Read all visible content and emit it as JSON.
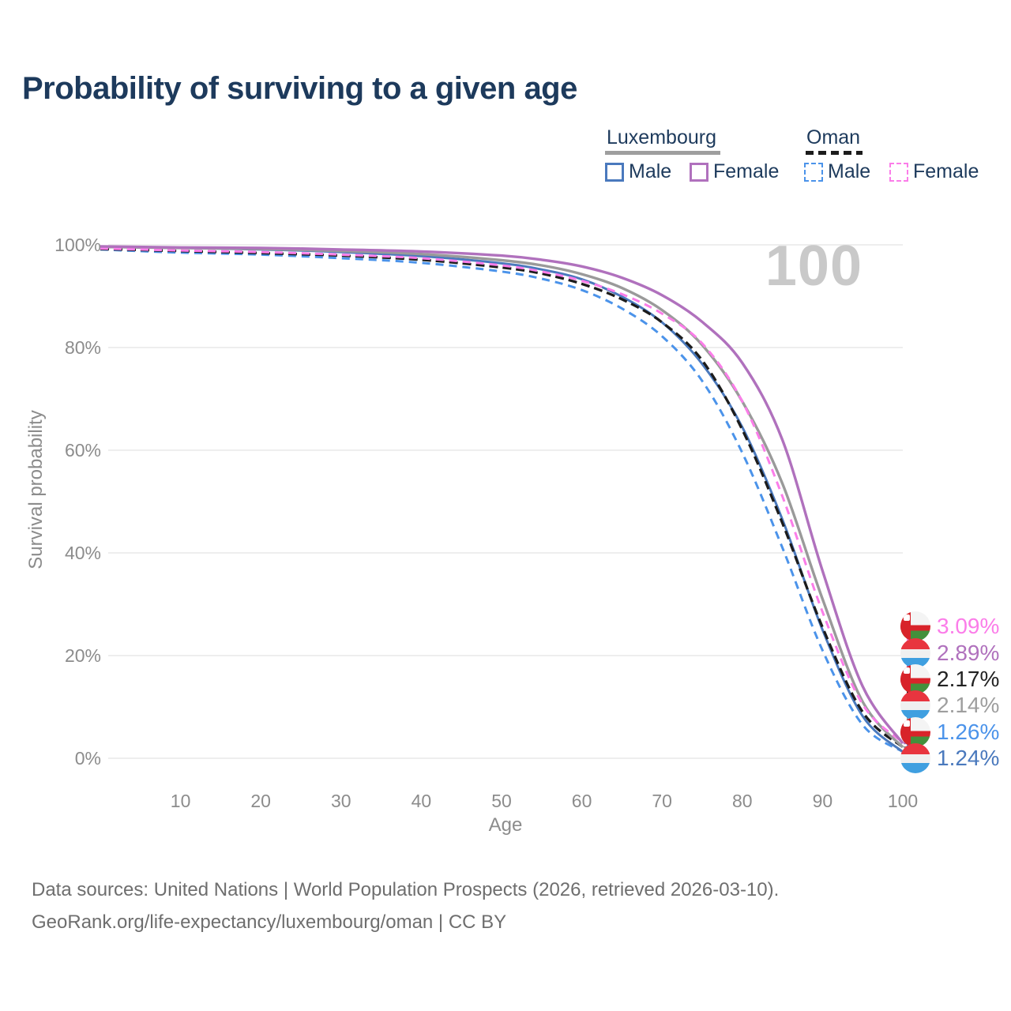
{
  "title": "Probability of surviving to a given age",
  "watermark": "100",
  "legend": {
    "luxembourg": {
      "title": "Luxembourg",
      "male": "Male",
      "female": "Female"
    },
    "oman": {
      "title": "Oman",
      "male": "Male",
      "female": "Female"
    }
  },
  "footer": {
    "line1": "Data sources: United Nations | World Population Prospects (2026, retrieved 2026-03-10).",
    "line2": "GeoRank.org/life-expectancy/luxembourg/oman | CC BY"
  },
  "colors": {
    "luxembourg_male": "#4a79bd",
    "luxembourg_female": "#b071bd",
    "luxembourg_total": "#9a9a9a",
    "oman_male": "#4b93ea",
    "oman_female": "#fb7de9",
    "oman_total": "#1c1c1c",
    "title_text": "#1d3a5c",
    "axis_text": "#8c8c8c",
    "gridline": "#e9e9e9",
    "watermark": "#c9c9c9"
  },
  "chart_data": {
    "type": "line",
    "title": "Probability of surviving to a given age",
    "xlabel": "Age",
    "ylabel": "Survival probability",
    "xlim": [
      0,
      100
    ],
    "ylim": [
      0,
      100
    ],
    "x_ticks": [
      10,
      20,
      30,
      40,
      50,
      60,
      70,
      80,
      90,
      100
    ],
    "y_ticks": [
      0,
      20,
      40,
      60,
      80,
      100
    ],
    "y_tick_suffix": "%",
    "grid": "horizontal-only",
    "legend_position": "top-right",
    "hover_age": 100,
    "ages": [
      0,
      10,
      20,
      30,
      40,
      50,
      55,
      60,
      65,
      70,
      75,
      80,
      85,
      90,
      95,
      100
    ],
    "series": [
      {
        "name": "Oman Male",
        "country": "Oman",
        "sex": "Male",
        "style": "dashed",
        "color": "#4b93ea",
        "width": 3,
        "values": [
          99.1,
          98.5,
          98.1,
          97.4,
          96.5,
          94.8,
          93.4,
          91.2,
          87.6,
          82.2,
          73.5,
          59.5,
          41.0,
          21.0,
          6.5,
          1.26
        ]
      },
      {
        "name": "Luxembourg Male",
        "country": "Luxembourg",
        "sex": "Male",
        "style": "solid",
        "color": "#4a79bd",
        "width": 3,
        "values": [
          99.6,
          99.4,
          99.1,
          98.6,
          97.8,
          96.4,
          95.2,
          93.3,
          89.9,
          84.9,
          76.8,
          64.5,
          46.5,
          25.0,
          8.2,
          1.24
        ]
      },
      {
        "name": "Oman Both sexes",
        "country": "Oman",
        "sex": "Both sexes",
        "style": "dashed",
        "color": "#1c1c1c",
        "width": 3.3,
        "values": [
          99.2,
          98.8,
          98.4,
          97.9,
          97.1,
          95.6,
          94.4,
          92.4,
          89.4,
          84.9,
          77.5,
          64.0,
          45.8,
          25.5,
          9.0,
          2.17
        ]
      },
      {
        "name": "Luxembourg Both sexes",
        "country": "Luxembourg",
        "sex": "Both sexes",
        "style": "solid",
        "color": "#9a9a9a",
        "width": 3.4,
        "values": [
          99.6,
          99.4,
          99.2,
          98.8,
          98.2,
          97.0,
          96.0,
          94.3,
          91.6,
          87.3,
          80.5,
          69.5,
          53.5,
          31.0,
          11.0,
          2.14
        ]
      },
      {
        "name": "Oman Female",
        "country": "Oman",
        "sex": "Female",
        "style": "dashed",
        "color": "#fb7de9",
        "width": 3,
        "values": [
          99.3,
          98.9,
          98.6,
          98.1,
          97.4,
          96.0,
          94.8,
          93.0,
          90.4,
          86.6,
          80.8,
          69.5,
          51.0,
          28.5,
          10.5,
          3.09
        ]
      },
      {
        "name": "Luxembourg Female",
        "country": "Luxembourg",
        "sex": "Female",
        "style": "solid",
        "color": "#b071bd",
        "width": 3.4,
        "values": [
          99.7,
          99.5,
          99.4,
          99.1,
          98.7,
          97.9,
          97.1,
          95.8,
          93.6,
          90.2,
          85.0,
          77.0,
          62.0,
          36.5,
          14.0,
          2.89
        ]
      }
    ],
    "right_labels": [
      {
        "value": "3.09%",
        "end_value": 3.09,
        "color": "#fb7de9",
        "flag": "oman",
        "series": "Oman Female"
      },
      {
        "value": "2.89%",
        "end_value": 2.89,
        "color": "#b071bd",
        "flag": "luxembourg",
        "series": "Luxembourg Female"
      },
      {
        "value": "2.17%",
        "end_value": 2.17,
        "color": "#222222",
        "flag": "oman",
        "series": "Oman Both sexes"
      },
      {
        "value": "2.14%",
        "end_value": 2.14,
        "color": "#9e9e9e",
        "flag": "luxembourg",
        "series": "Luxembourg Both sexes"
      },
      {
        "value": "1.26%",
        "end_value": 1.26,
        "color": "#4b93ea",
        "flag": "oman",
        "series": "Oman Male"
      },
      {
        "value": "1.24%",
        "end_value": 1.24,
        "color": "#4a79bd",
        "flag": "luxembourg",
        "series": "Luxembourg Male"
      }
    ]
  }
}
